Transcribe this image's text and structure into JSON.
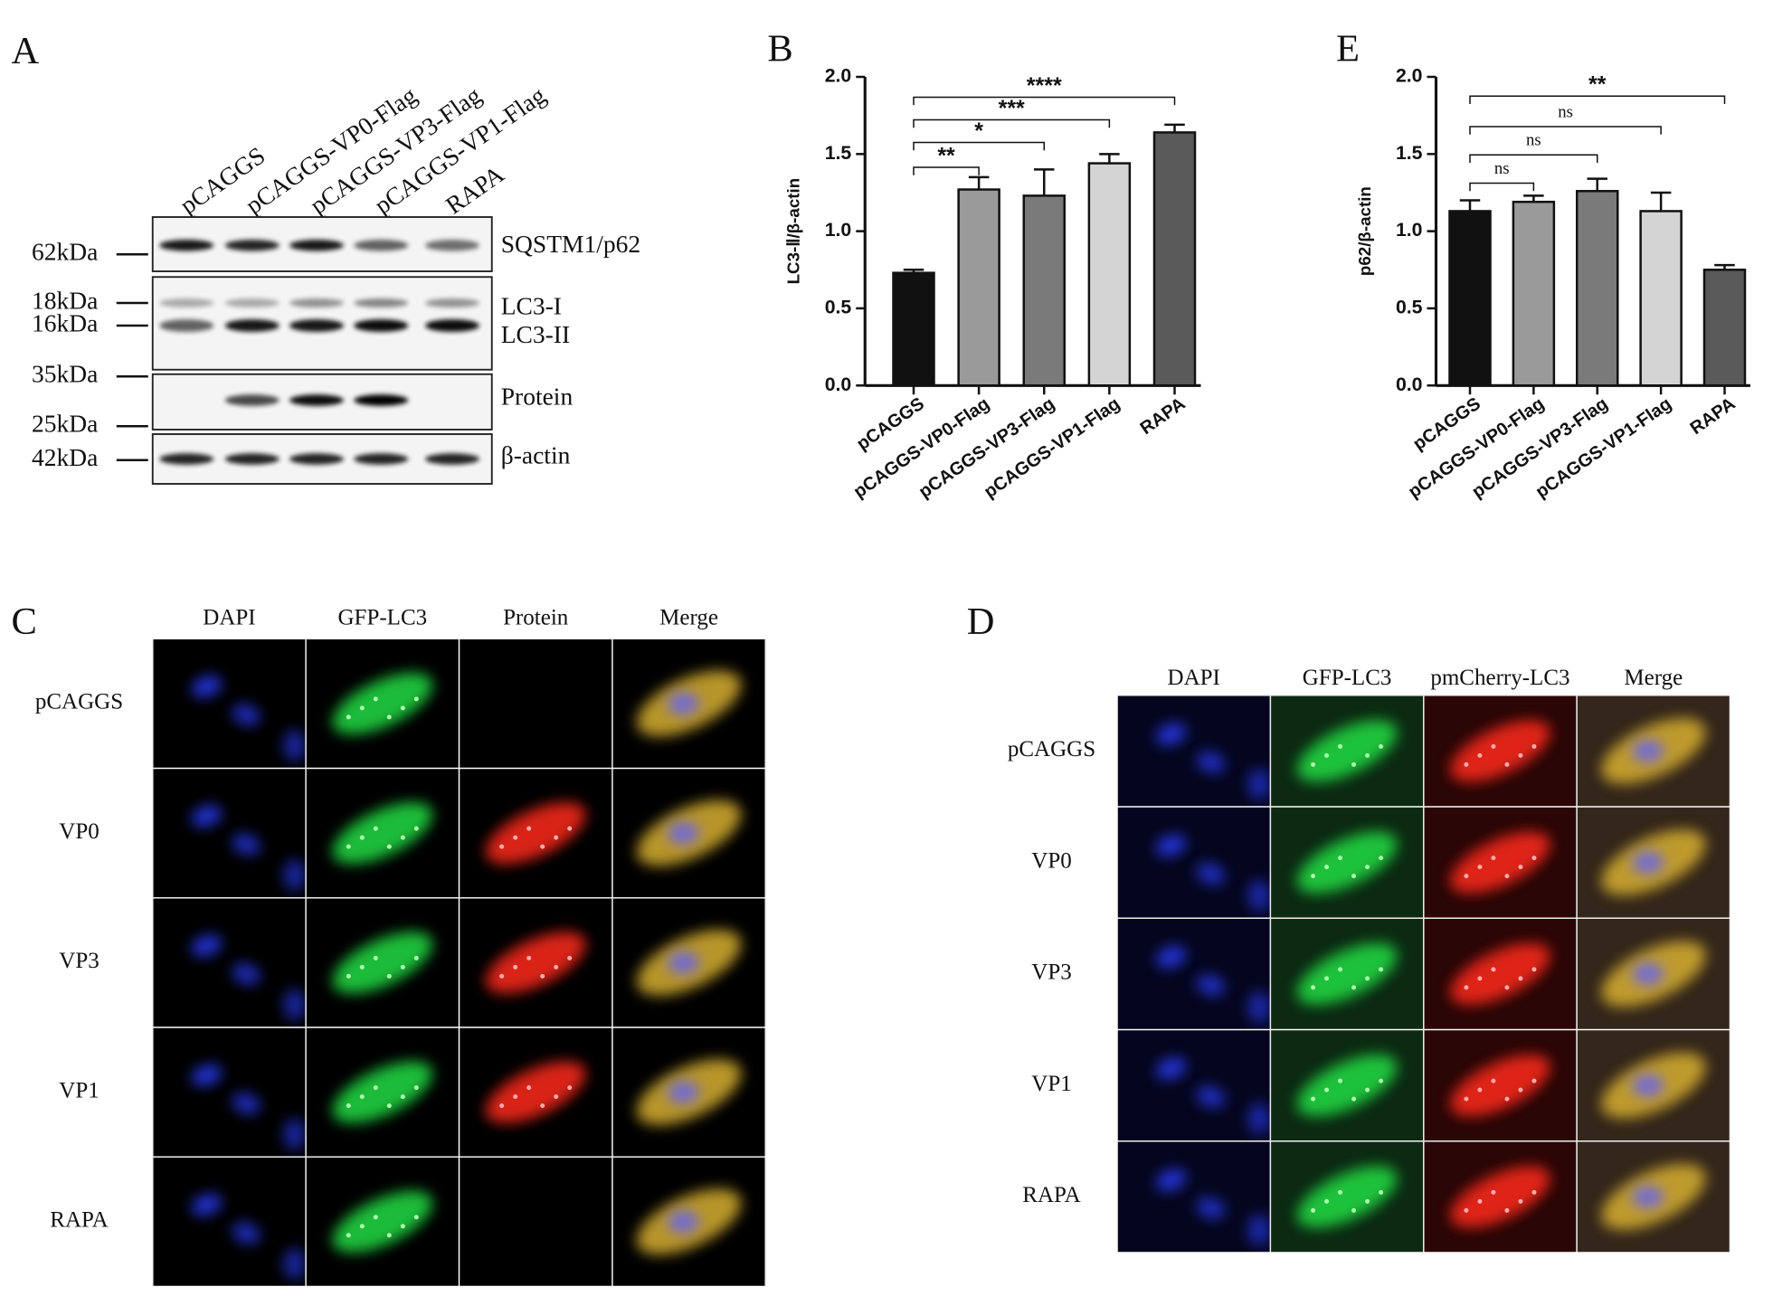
{
  "panel_a": {
    "label": "A",
    "lanes": [
      "pCAGGS",
      "pCAGGS-VP0-Flag",
      "pCAGGS-VP3-Flag",
      "pCAGGS-VP1-Flag",
      "RAPA"
    ],
    "mw_markers": [
      "62kDa",
      "18kDa",
      "16kDa",
      "35kDa",
      "25kDa",
      "42kDa"
    ],
    "blot_labels": [
      "SQSTM1/p62",
      "LC3-I",
      "LC3-II",
      "Protein",
      "β-actin"
    ]
  },
  "chart_data": [
    {
      "type": "bar",
      "panel": "B",
      "ylabel": "LC3-Ⅱ/β-actin",
      "categories": [
        "pCAGGS",
        "pCAGGS-VP0-Flag",
        "pCAGGS-VP3-Flag",
        "pCAGGS-VP1-Flag",
        "RAPA"
      ],
      "values": [
        0.73,
        1.27,
        1.23,
        1.44,
        1.64
      ],
      "errors": [
        0.02,
        0.08,
        0.17,
        0.06,
        0.05
      ],
      "colors": [
        "#111111",
        "#9a9a9a",
        "#7a7a7a",
        "#d4d4d4",
        "#5a5a5a"
      ],
      "ylim": [
        0,
        2
      ],
      "yticks": [
        {
          "value": 0,
          "label": "0.0"
        },
        {
          "value": 0.5,
          "label": "0.5"
        },
        {
          "value": 1,
          "label": "1.0"
        },
        {
          "value": 1.5,
          "label": "1.5"
        },
        {
          "value": 2,
          "label": "2.0"
        }
      ],
      "comparisons": [
        {
          "groups": [
            "pCAGGS",
            "pCAGGS-VP0-Flag"
          ],
          "label": "**"
        },
        {
          "groups": [
            "pCAGGS",
            "pCAGGS-VP3-Flag"
          ],
          "label": "*"
        },
        {
          "groups": [
            "pCAGGS",
            "pCAGGS-VP1-Flag"
          ],
          "label": "***"
        },
        {
          "groups": [
            "pCAGGS",
            "RAPA"
          ],
          "label": "****"
        }
      ]
    },
    {
      "type": "bar",
      "panel": "E",
      "ylabel": "p62/β-actin",
      "categories": [
        "pCAGGS",
        "pCAGGS-VP0-Flag",
        "pCAGGS-VP3-Flag",
        "pCAGGS-VP1-Flag",
        "RAPA"
      ],
      "values": [
        1.13,
        1.19,
        1.26,
        1.13,
        0.75
      ],
      "errors": [
        0.07,
        0.04,
        0.08,
        0.12,
        0.03
      ],
      "colors": [
        "#111111",
        "#9a9a9a",
        "#7a7a7a",
        "#d4d4d4",
        "#5a5a5a"
      ],
      "ylim": [
        0,
        2
      ],
      "yticks": [
        {
          "value": 0,
          "label": "0.0"
        },
        {
          "value": 0.5,
          "label": "0.5"
        },
        {
          "value": 1,
          "label": "1.0"
        },
        {
          "value": 1.5,
          "label": "1.5"
        },
        {
          "value": 2,
          "label": "2.0"
        }
      ],
      "comparisons": [
        {
          "groups": [
            "pCAGGS",
            "pCAGGS-VP0-Flag"
          ],
          "label": "ns"
        },
        {
          "groups": [
            "pCAGGS",
            "pCAGGS-VP3-Flag"
          ],
          "label": "ns"
        },
        {
          "groups": [
            "pCAGGS",
            "pCAGGS-VP1-Flag"
          ],
          "label": "ns"
        },
        {
          "groups": [
            "pCAGGS",
            "RAPA"
          ],
          "label": "**"
        }
      ]
    }
  ],
  "panel_c": {
    "label": "C",
    "columns": [
      "DAPI",
      "GFP-LC3",
      "Protein",
      "Merge"
    ],
    "rows": [
      "pCAGGS",
      "VP0",
      "VP3",
      "VP1",
      "RAPA"
    ]
  },
  "panel_d": {
    "label": "D",
    "columns": [
      "DAPI",
      "GFP-LC3",
      "pmCherry-LC3",
      "Merge"
    ],
    "rows": [
      "pCAGGS",
      "VP0",
      "VP3",
      "VP1",
      "RAPA"
    ]
  }
}
